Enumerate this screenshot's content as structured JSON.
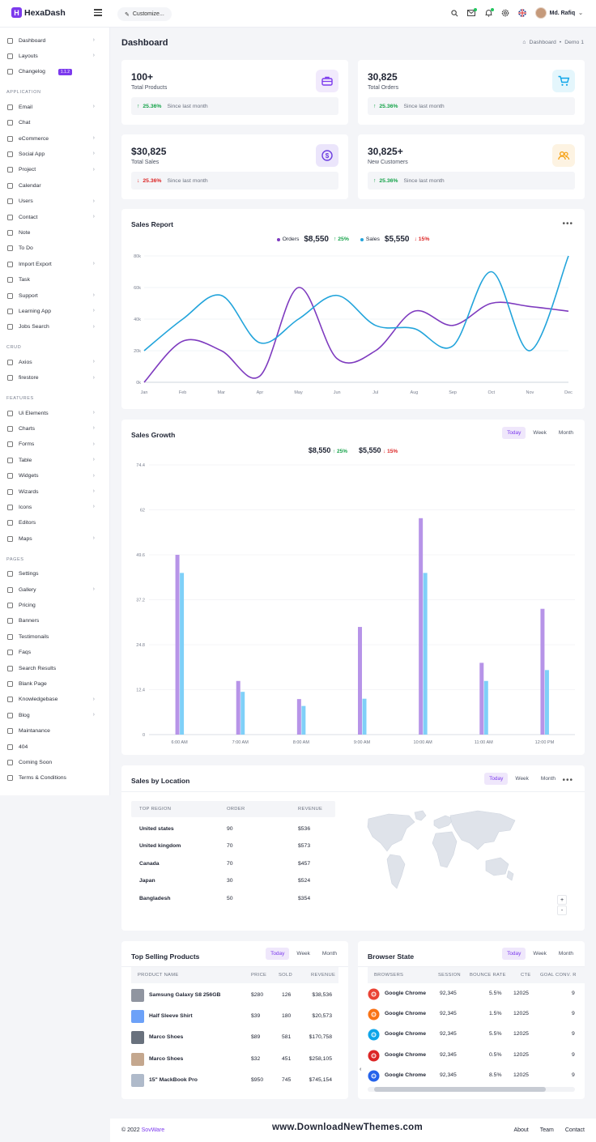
{
  "app": {
    "name": "HexaDash",
    "logo_letter": "H",
    "accent": "#7c3aed"
  },
  "topbar": {
    "customize_label": "Customize...",
    "user_name": "Md. Rafiq",
    "icons": [
      "search-icon",
      "mail-icon",
      "bell-icon",
      "gear-icon",
      "flag-icon"
    ]
  },
  "sidebar": {
    "main": [
      {
        "label": "Dashboard",
        "icon": "grid-icon",
        "chevron": true
      },
      {
        "label": "Layouts",
        "icon": "layout-icon",
        "chevron": true
      },
      {
        "label": "Changelog",
        "icon": "activity-icon",
        "chevron": false,
        "badge": "1.1.2"
      }
    ],
    "sections": [
      {
        "title": "APPLICATION",
        "items": [
          {
            "label": "Email",
            "chevron": true
          },
          {
            "label": "Chat",
            "chevron": false
          },
          {
            "label": "eCommerce",
            "chevron": true
          },
          {
            "label": "Social App",
            "chevron": true
          },
          {
            "label": "Project",
            "chevron": true
          },
          {
            "label": "Calendar",
            "chevron": false
          },
          {
            "label": "Users",
            "chevron": true
          },
          {
            "label": "Contact",
            "chevron": true
          },
          {
            "label": "Note",
            "chevron": false
          },
          {
            "label": "To Do",
            "chevron": false
          },
          {
            "label": "Import Export",
            "chevron": true
          },
          {
            "label": "Task",
            "chevron": false
          },
          {
            "label": "Support",
            "chevron": true
          },
          {
            "label": "Learning App",
            "chevron": true
          },
          {
            "label": "Jobs Search",
            "chevron": true
          }
        ]
      },
      {
        "title": "CRUD",
        "items": [
          {
            "label": "Axios",
            "chevron": true
          },
          {
            "label": "firestore",
            "chevron": true
          }
        ]
      },
      {
        "title": "FEATURES",
        "items": [
          {
            "label": "Ui Elements",
            "chevron": true
          },
          {
            "label": "Charts",
            "chevron": true
          },
          {
            "label": "Forms",
            "chevron": true
          },
          {
            "label": "Table",
            "chevron": true
          },
          {
            "label": "Widgets",
            "chevron": true
          },
          {
            "label": "Wizards",
            "chevron": true
          },
          {
            "label": "Icons",
            "chevron": true
          },
          {
            "label": "Editors",
            "chevron": false
          },
          {
            "label": "Maps",
            "chevron": true
          }
        ]
      },
      {
        "title": "PAGES",
        "items": [
          {
            "label": "Settings",
            "chevron": false
          },
          {
            "label": "Gallery",
            "chevron": true
          },
          {
            "label": "Pricing",
            "chevron": false
          },
          {
            "label": "Banners",
            "chevron": false
          },
          {
            "label": "Testimonails",
            "chevron": false
          },
          {
            "label": "Faqs",
            "chevron": false
          },
          {
            "label": "Search Results",
            "chevron": false
          },
          {
            "label": "Blank Page",
            "chevron": false
          },
          {
            "label": "Knowledgebase",
            "chevron": true
          },
          {
            "label": "Blog",
            "chevron": true
          },
          {
            "label": "Maintanance",
            "chevron": false
          },
          {
            "label": "404",
            "chevron": false
          },
          {
            "label": "Coming Soon",
            "chevron": false
          },
          {
            "label": "Terms & Conditions",
            "chevron": false
          }
        ]
      }
    ]
  },
  "page": {
    "title": "Dashboard",
    "breadcrumb": [
      "Dashboard",
      "Demo 1"
    ]
  },
  "stats": [
    {
      "value": "100+",
      "label": "Total Products",
      "trend": "up",
      "change": "25.36%",
      "since": "Since last month",
      "icon": "briefcase-icon",
      "icon_color": "#7c3aed",
      "icon_bg": "#f1eafc"
    },
    {
      "value": "30,825",
      "label": "Total Orders",
      "trend": "up",
      "change": "25.36%",
      "since": "Since last month",
      "icon": "cart-icon",
      "icon_color": "#0ea5e9",
      "icon_bg": "#e4f6fc"
    },
    {
      "value": "$30,825",
      "label": "Total Sales",
      "trend": "down",
      "change": "25.36%",
      "since": "Since last month",
      "icon": "dollar-icon",
      "icon_color": "#6d3fe0",
      "icon_bg": "#ebe5fb"
    },
    {
      "value": "30,825+",
      "label": "New Customers",
      "trend": "up",
      "change": "25.36%",
      "since": "Since last month",
      "icon": "users-icon",
      "icon_color": "#f59e0b",
      "icon_bg": "#fdf3e2"
    }
  ],
  "sales_report": {
    "title": "Sales Report",
    "legend": [
      {
        "name": "Orders",
        "value": "$8,550",
        "trend": "up",
        "change": "25%",
        "color": "#7e3bbf"
      },
      {
        "name": "Sales",
        "value": "$5,550",
        "trend": "down",
        "change": "15%",
        "color": "#22a4db"
      }
    ]
  },
  "sales_growth": {
    "title": "Sales Growth",
    "tabs": [
      "Today",
      "Week",
      "Month"
    ],
    "active_tab": "Today",
    "summary": [
      {
        "value": "$8,550",
        "trend": "up",
        "change": "25%"
      },
      {
        "value": "$5,550",
        "trend": "down",
        "change": "15%"
      }
    ]
  },
  "sales_location": {
    "title": "Sales by Location",
    "tabs": [
      "Today",
      "Week",
      "Month"
    ],
    "active_tab": "Today",
    "headers": [
      "TOP REGION",
      "ORDER",
      "REVENUE"
    ],
    "rows": [
      [
        "United states",
        "90",
        "$536"
      ],
      [
        "United kingdom",
        "70",
        "$573"
      ],
      [
        "Canada",
        "70",
        "$457"
      ],
      [
        "Japan",
        "30",
        "$524"
      ],
      [
        "Bangladesh",
        "50",
        "$354"
      ]
    ],
    "zoom": [
      "+",
      "-"
    ]
  },
  "top_products": {
    "title": "Top Selling Products",
    "tabs": [
      "Today",
      "Week",
      "Month"
    ],
    "active_tab": "Today",
    "headers": [
      "PRODUCT NAME",
      "PRICE",
      "SOLD",
      "REVENUE"
    ],
    "rows": [
      {
        "name": "Samsung Galaxy S8 256GB",
        "price": "$280",
        "sold": "126",
        "revenue": "$38,536",
        "thumb": "#6b7280"
      },
      {
        "name": "Half Sleeve Shirt",
        "price": "$39",
        "sold": "180",
        "revenue": "$20,573",
        "thumb": "#3b82f6"
      },
      {
        "name": "Marco Shoes",
        "price": "$89",
        "sold": "581",
        "revenue": "$170,758",
        "thumb": "#374151"
      },
      {
        "name": "Marco Shoes",
        "price": "$32",
        "sold": "451",
        "revenue": "$258,105",
        "thumb": "#b08968"
      },
      {
        "name": "15\" MackBook Pro",
        "price": "$950",
        "sold": "745",
        "revenue": "$745,154",
        "thumb": "#94a3b8"
      }
    ]
  },
  "browser_state": {
    "title": "Browser State",
    "tabs": [
      "Today",
      "Week",
      "Month"
    ],
    "active_tab": "Today",
    "headers": [
      "BROWSERS",
      "SESSION",
      "BOUNCE RATE",
      "CTE",
      "GOAL CONV. R"
    ],
    "rows": [
      {
        "name": "Google Chrome",
        "session": "92,345",
        "bounce": "5.5%",
        "cte": "12025",
        "goal": "9",
        "icon": "chrome-icon",
        "color": "#ea4335"
      },
      {
        "name": "Google Chrome",
        "session": "92,345",
        "bounce": "1.5%",
        "cte": "12025",
        "goal": "9",
        "icon": "firefox-icon",
        "color": "#f97316"
      },
      {
        "name": "Google Chrome",
        "session": "92,345",
        "bounce": "5.5%",
        "cte": "12025",
        "goal": "9",
        "icon": "ie-icon",
        "color": "#0ea5e9"
      },
      {
        "name": "Google Chrome",
        "session": "92,345",
        "bounce": "0.5%",
        "cte": "12025",
        "goal": "9",
        "icon": "opera-icon",
        "color": "#dc2626"
      },
      {
        "name": "Google Chrome",
        "session": "92,345",
        "bounce": "8.5%",
        "cte": "12025",
        "goal": "9",
        "icon": "safari-icon",
        "color": "#2563eb"
      }
    ]
  },
  "footer": {
    "copyright": "© 2022",
    "brand": "SovWare",
    "watermark": "www.DownloadNewThemes.com",
    "links": [
      "About",
      "Team",
      "Contact"
    ]
  },
  "chart_data": [
    {
      "type": "line",
      "title": "Sales Report",
      "categories": [
        "Jan",
        "Feb",
        "Mar",
        "Apr",
        "May",
        "Jun",
        "Jul",
        "Aug",
        "Sep",
        "Oct",
        "Nov",
        "Dec"
      ],
      "y_ticks": [
        "0k",
        "20k",
        "40k",
        "60k",
        "80k"
      ],
      "ylim": [
        0,
        80000
      ],
      "series": [
        {
          "name": "Orders",
          "color": "#7e3bbf",
          "values": [
            0,
            26000,
            20000,
            4000,
            60000,
            15000,
            20000,
            45000,
            36000,
            50000,
            48000,
            45000
          ]
        },
        {
          "name": "Sales",
          "color": "#22a4db",
          "values": [
            20000,
            40000,
            55000,
            25000,
            40000,
            55000,
            36000,
            34000,
            23000,
            70000,
            20000,
            80000
          ]
        }
      ]
    },
    {
      "type": "bar",
      "title": "Sales Growth",
      "categories": [
        "6:00 AM",
        "7:00 AM",
        "8:00 AM",
        "9:00 AM",
        "10:00 AM",
        "11:00 AM",
        "12:00 PM"
      ],
      "y_ticks": [
        "0",
        "12.4",
        "24.8",
        "37.2",
        "49.6",
        "62",
        "74.4"
      ],
      "ylim": [
        0,
        74.4
      ],
      "series": [
        {
          "color": "#b794e8",
          "values": [
            49.6,
            14.8,
            9.8,
            29.7,
            59.7,
            19.8,
            34.7
          ]
        },
        {
          "color": "#7fd0f8",
          "values": [
            44.6,
            11.8,
            7.9,
            9.9,
            44.6,
            14.8,
            17.8
          ]
        }
      ]
    }
  ]
}
